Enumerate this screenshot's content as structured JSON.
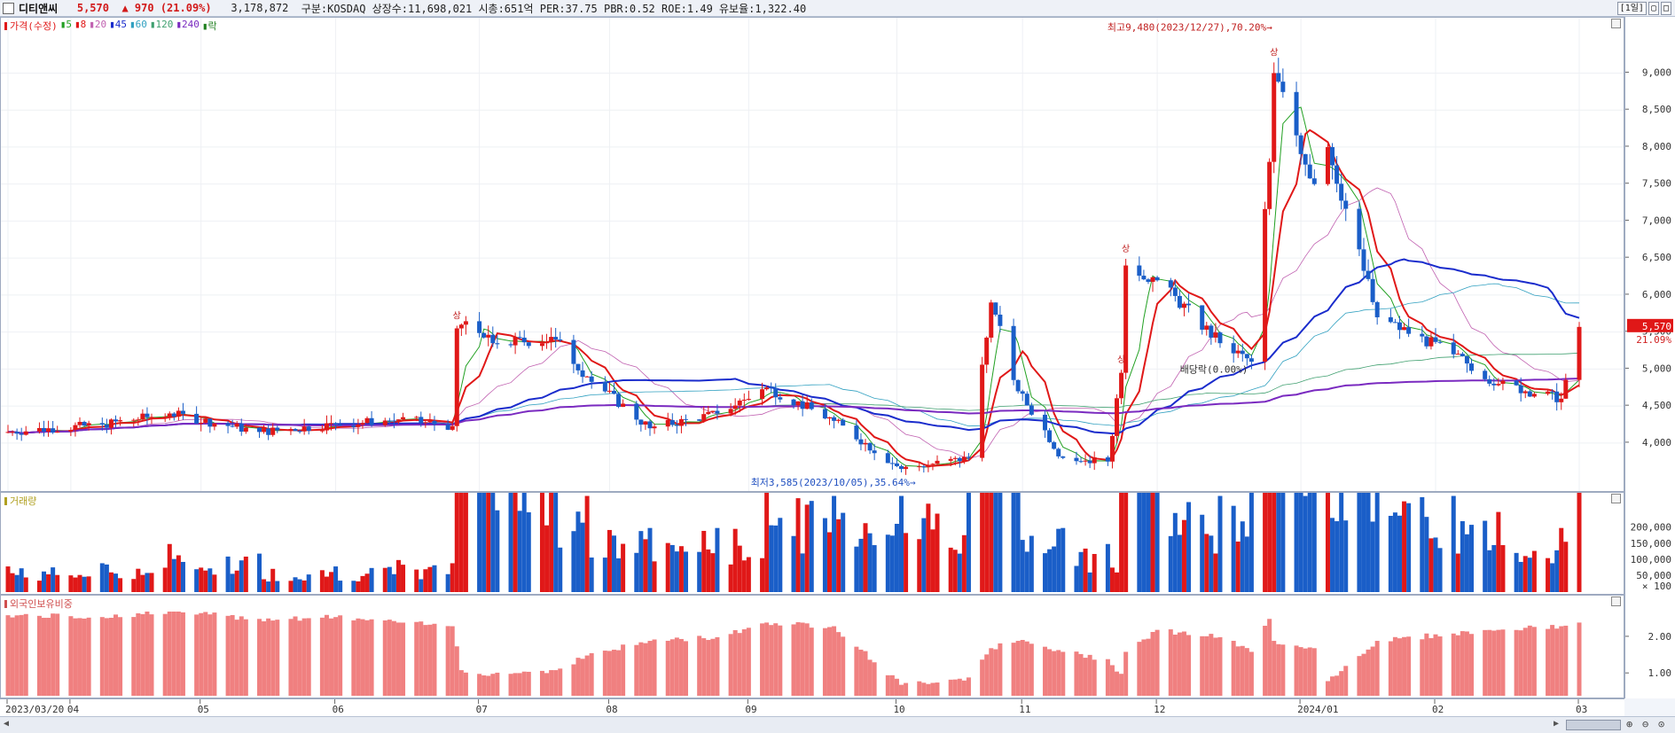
{
  "header": {
    "stock_name": "디티앤씨",
    "price": "5,570",
    "change_arrow": "▲",
    "change": "970",
    "change_pct": "(21.09%)",
    "volume": "3,178,872",
    "info": "구분:KOSDAQ 상장수:11,698,021 시총:651억 PER:37.75 PBR:0.52 ROE:1.49 유보율:1,322.40",
    "period_button": "[1일]"
  },
  "legend": {
    "price_label": "가격(수정)",
    "ma_items": [
      {
        "label": "5",
        "color": "#22a022"
      },
      {
        "label": "8",
        "color": "#e01818"
      },
      {
        "label": "20",
        "color": "#c060b0"
      },
      {
        "label": "45",
        "color": "#1a2ccc"
      },
      {
        "label": "60",
        "color": "#30a0c0"
      },
      {
        "label": "120",
        "color": "#40a070"
      },
      {
        "label": "240",
        "color": "#7a2ac0"
      },
      {
        "label": "락",
        "color": "#208020"
      }
    ]
  },
  "annotations": {
    "high": "최고9,480(2023/12/27),70.20%→",
    "low": "최저3,585(2023/10/05),35.64%→",
    "dividend": "배당락(0.00%)",
    "limit_up": "상"
  },
  "price_badge": {
    "price": "5,570",
    "pct": "21.09%"
  },
  "volume_panel": {
    "title": "거래량"
  },
  "foreign_panel": {
    "title": "외국인보유비중"
  },
  "colors": {
    "up": "#e01818",
    "down": "#1a5ec8",
    "foreign": "#f08080"
  },
  "chart_data": {
    "type": "candlestick",
    "price_axis": {
      "range": [
        3400,
        9700
      ],
      "ticks": [
        4000,
        4500,
        5000,
        5500,
        6000,
        6500,
        7000,
        7500,
        8000,
        8500,
        9000
      ]
    },
    "price_tick_labels": [
      "4,000",
      "4,500",
      "5,000",
      "5,500",
      "6,000",
      "6,500",
      "7,000",
      "7,500",
      "8,000",
      "8,500",
      "9,000"
    ],
    "volume_axis": {
      "range": [
        0,
        260000
      ],
      "ticks": [
        50000,
        100000,
        150000,
        200000
      ]
    },
    "volume_tick_labels": [
      "50,000",
      "100,000",
      "150,000",
      "200,000"
    ],
    "volume_unit": "× 100",
    "foreign_axis": {
      "range": [
        0.4,
        2.7
      ],
      "ticks": [
        1.0,
        2.0
      ]
    },
    "foreign_tick_labels": [
      "1.00",
      "2.00"
    ],
    "x_labels": [
      {
        "date": "2023-03-20",
        "label": "2023/03/20"
      },
      {
        "date": "2023-04-03",
        "label": "04"
      },
      {
        "date": "2023-05-02",
        "label": "05"
      },
      {
        "date": "2023-06-01",
        "label": "06"
      },
      {
        "date": "2023-07-03",
        "label": "07"
      },
      {
        "date": "2023-08-01",
        "label": "08"
      },
      {
        "date": "2023-09-01",
        "label": "09"
      },
      {
        "date": "2023-10-04",
        "label": "10"
      },
      {
        "date": "2023-11-01",
        "label": "11"
      },
      {
        "date": "2023-12-01",
        "label": "12"
      },
      {
        "date": "2024-01-02",
        "label": "2024/01"
      },
      {
        "date": "2024-02-01",
        "label": "02"
      },
      {
        "date": "2024-03-04",
        "label": "03"
      }
    ],
    "key_points": [
      {
        "date": "2023-03-20",
        "close": 4150,
        "volume": 800,
        "foreign": 2.6
      },
      {
        "date": "2023-04-10",
        "close": 4250,
        "volume": 900,
        "foreign": 2.55
      },
      {
        "date": "2023-04-25",
        "close": 4400,
        "volume": 1500,
        "foreign": 2.7
      },
      {
        "date": "2023-05-15",
        "close": 4150,
        "volume": 1200,
        "foreign": 2.5
      },
      {
        "date": "2023-06-01",
        "close": 4250,
        "volume": 800,
        "foreign": 2.55
      },
      {
        "date": "2023-06-15",
        "close": 4320,
        "volume": 1000,
        "foreign": 2.4
      },
      {
        "date": "2023-06-27",
        "close": 4230,
        "volume": 900,
        "foreign": 2.3
      },
      {
        "date": "2023-06-28",
        "close": 5550,
        "volume": 15000,
        "foreign": 1.75
      },
      {
        "date": "2023-06-29",
        "close": 5600,
        "volume": 105000,
        "foreign": 1.1
      },
      {
        "date": "2023-07-06",
        "close": 5350,
        "volume": 18000,
        "foreign": 1.0
      },
      {
        "date": "2023-07-20",
        "close": 5400,
        "volume": 5000,
        "foreign": 1.1
      },
      {
        "date": "2023-07-27",
        "close": 4900,
        "volume": 3000,
        "foreign": 1.5
      },
      {
        "date": "2023-08-10",
        "close": 4200,
        "volume": 2000,
        "foreign": 1.9
      },
      {
        "date": "2023-08-25",
        "close": 4400,
        "volume": 2000,
        "foreign": 2.0
      },
      {
        "date": "2023-09-05",
        "close": 4750,
        "volume": 4000,
        "foreign": 2.4
      },
      {
        "date": "2023-09-20",
        "close": 4300,
        "volume": 3000,
        "foreign": 2.3
      },
      {
        "date": "2023-10-05",
        "close": 3650,
        "volume": 3000,
        "foreign": 0.7
      },
      {
        "date": "2023-10-20",
        "close": 3800,
        "volume": 15000,
        "foreign": 0.9
      },
      {
        "date": "2023-10-25",
        "close": 5900,
        "volume": 130000,
        "foreign": 1.7
      },
      {
        "date": "2023-10-31",
        "close": 4700,
        "volume": 8000,
        "foreign": 1.9
      },
      {
        "date": "2023-11-10",
        "close": 3800,
        "volume": 2000,
        "foreign": 1.6
      },
      {
        "date": "2023-11-20",
        "close": 3750,
        "volume": 1500,
        "foreign": 1.4
      },
      {
        "date": "2023-11-23",
        "close": 4950,
        "volume": 60000,
        "foreign": 1.0
      },
      {
        "date": "2023-11-24",
        "close": 6400,
        "volume": 40000,
        "foreign": 1.6
      },
      {
        "date": "2023-12-01",
        "close": 6200,
        "volume": 6000,
        "foreign": 2.2
      },
      {
        "date": "2023-12-15",
        "close": 5350,
        "volume": 3000,
        "foreign": 2.0
      },
      {
        "date": "2023-12-22",
        "close": 5100,
        "volume": 50000,
        "foreign": 1.6
      },
      {
        "date": "2023-12-26",
        "close": 7800,
        "volume": 230000,
        "foreign": 2.5
      },
      {
        "date": "2023-12-27",
        "close": 9000,
        "volume": 40000,
        "foreign": 1.9
      },
      {
        "date": "2024-01-05",
        "close": 7500,
        "volume": 6000,
        "foreign": 1.7
      },
      {
        "date": "2024-01-08",
        "close": 8000,
        "volume": 40000,
        "foreign": 0.8
      },
      {
        "date": "2024-01-19",
        "close": 5700,
        "volume": 5000,
        "foreign": 1.9
      },
      {
        "date": "2024-02-05",
        "close": 5200,
        "volume": 3000,
        "foreign": 2.1
      },
      {
        "date": "2024-02-15",
        "close": 4800,
        "volume": 2500,
        "foreign": 2.2
      },
      {
        "date": "2024-02-29",
        "close": 4600,
        "volume": 2000,
        "foreign": 2.3
      },
      {
        "date": "2024-03-04",
        "close": 5570,
        "volume": 31789,
        "foreign": 2.4
      }
    ]
  }
}
